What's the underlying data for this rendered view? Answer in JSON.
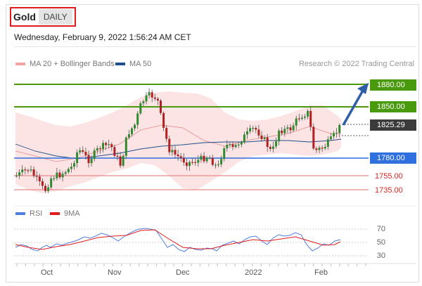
{
  "header": {
    "symbol": "Gold",
    "timeframe": "DAILY",
    "datetime": "Wednesday, February 9, 2022 1:56:24 AM CET"
  },
  "legend": {
    "bollinger": "MA 20 + Bollinger Bands",
    "ma50": "MA 50",
    "rsi": "RSI",
    "ma9": "9MA",
    "copyright": "Research © 2022 Trading Central"
  },
  "colors": {
    "bollinger": "#f4a3a3",
    "ma50": "#1f4e8c",
    "rsi": "#4f7ee0",
    "ma9": "#e21b1b",
    "resistance": "#4a9a0e",
    "pivot": "#2f6fe0",
    "support": "#e58a8a"
  },
  "levels": {
    "r2": "1880.00",
    "r1": "1850.00",
    "last": "1825.29",
    "pivot": "1780.00",
    "s1": "1755.00",
    "s2": "1735.00"
  },
  "rsi_axis": [
    "70",
    "50",
    "30"
  ],
  "x_labels": [
    "Oct",
    "Nov",
    "Dec",
    "2022",
    "Feb"
  ]
}
